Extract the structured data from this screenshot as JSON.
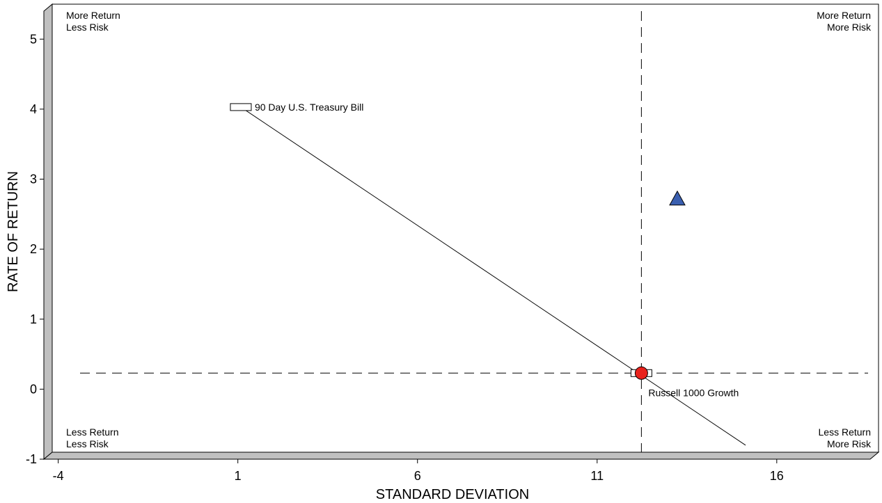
{
  "chart_data": {
    "type": "scatter",
    "xlabel": "STANDARD DEVIATION",
    "ylabel": "RATE OF RETURN",
    "xlim": [
      -4.4,
      18.6
    ],
    "ylim": [
      -1,
      5.4
    ],
    "xticks": [
      -4,
      1,
      6,
      11,
      16
    ],
    "yticks": [
      -1,
      0,
      1,
      2,
      3,
      4,
      5
    ],
    "x_tick_labels": [
      "-4",
      "1",
      "6",
      "11",
      "16"
    ],
    "y_tick_labels": [
      "-1",
      "0",
      "1",
      "2",
      "3",
      "4",
      "5"
    ],
    "grid": false,
    "reference_lines": {
      "x": 12.0,
      "y": 0.13
    },
    "corner_labels": {
      "top_left": [
        "More Return",
        "Less Risk"
      ],
      "top_right": [
        "More Return",
        "More Risk"
      ],
      "bottom_left": [
        "Less Return",
        "Less Risk"
      ],
      "bottom_right": [
        "Less Return",
        "More Risk"
      ]
    },
    "points": [
      {
        "label": "90 Day U.S. Treasury Bill",
        "x": 0.85,
        "y": 3.93,
        "marker": "rectangle",
        "color": "#ffffff"
      },
      {
        "label": "Russell 1000 Growth",
        "x": 12.0,
        "y": 0.13,
        "marker": "rectangle",
        "color": "#ffffff"
      },
      {
        "label": "",
        "x": 12.0,
        "y": 0.13,
        "marker": "circle",
        "color": "#e8221c"
      },
      {
        "label": "",
        "x": 13.0,
        "y": 2.62,
        "marker": "triangle",
        "color": "#3a5fb0"
      }
    ],
    "line": {
      "x": [
        0.85,
        14.9
      ],
      "y": [
        3.93,
        -0.9
      ]
    }
  }
}
